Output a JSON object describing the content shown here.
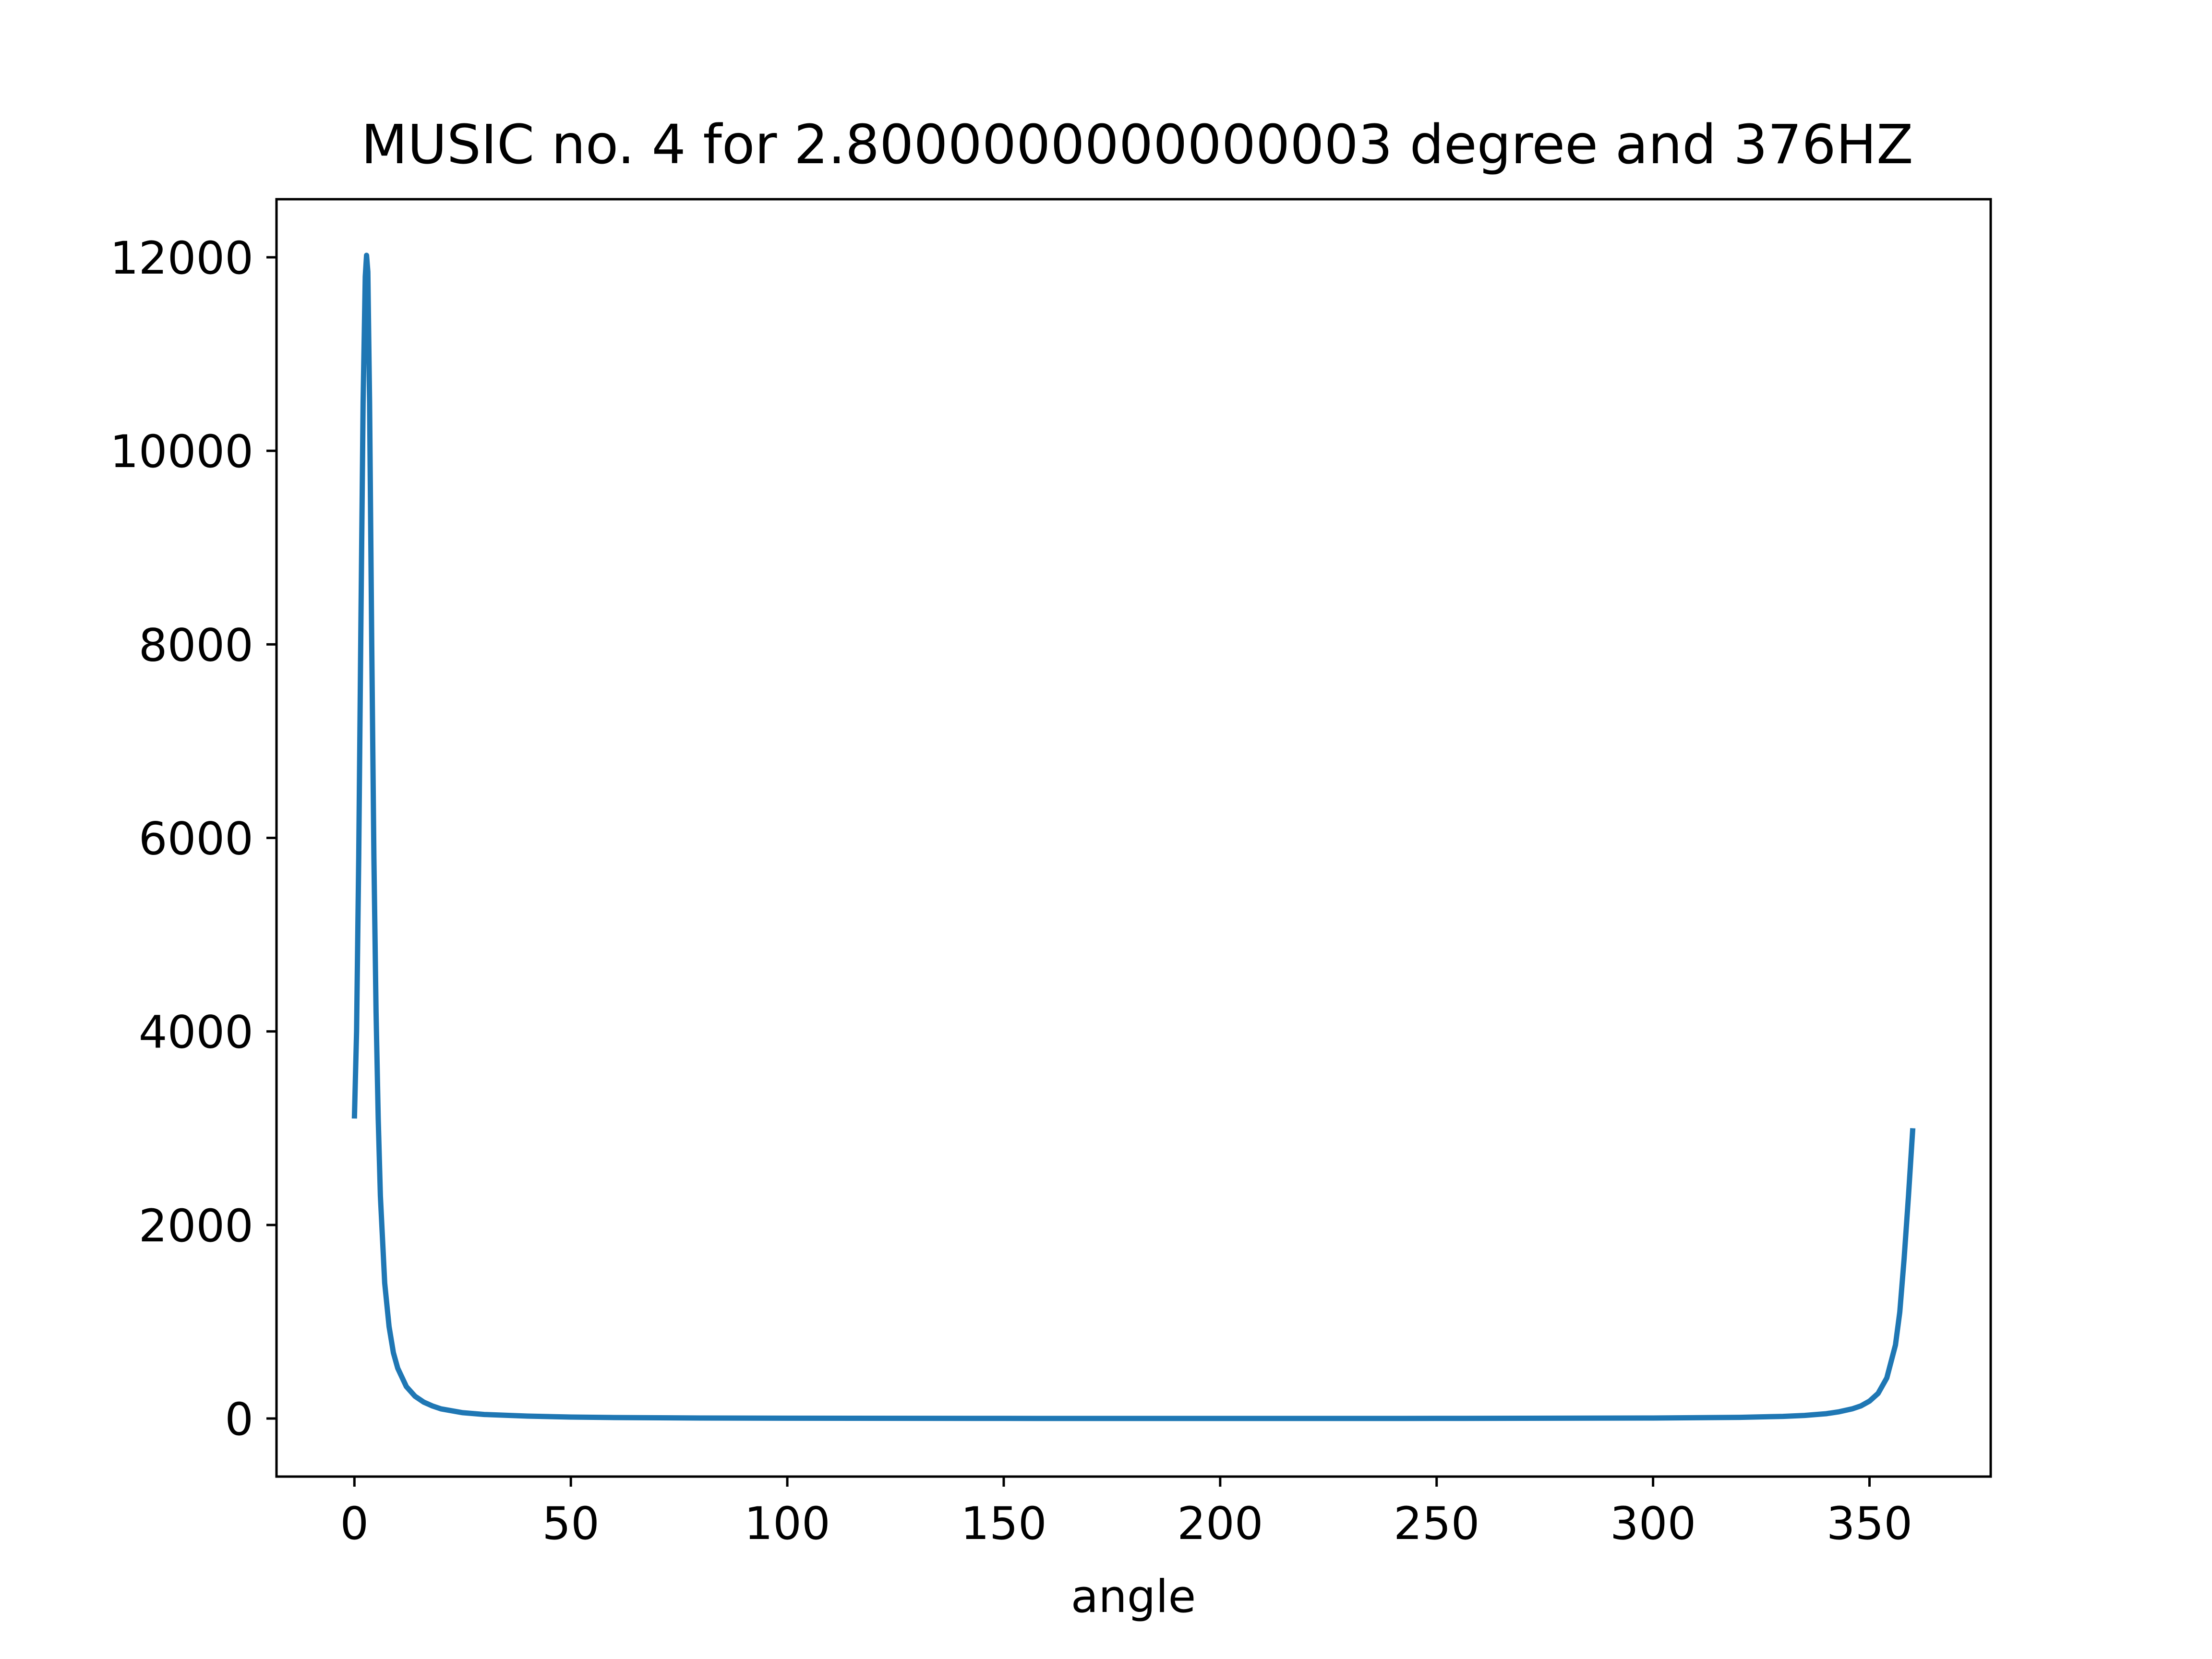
{
  "chart_data": {
    "type": "line",
    "title": "MUSIC no. 4 for 2.8000000000000003 degree and 376HZ",
    "xlabel": "angle",
    "ylabel": "",
    "xlim": [
      -18,
      378
    ],
    "ylim": [
      -600,
      12600
    ],
    "xticks": [
      0,
      50,
      100,
      150,
      200,
      250,
      300,
      350
    ],
    "xtick_labels": [
      "0",
      "50",
      "100",
      "150",
      "200",
      "250",
      "300",
      "350"
    ],
    "yticks": [
      0,
      2000,
      4000,
      6000,
      8000,
      10000,
      12000
    ],
    "ytick_labels": [
      "0",
      "2000",
      "4000",
      "6000",
      "8000",
      "10000",
      "12000"
    ],
    "grid": false,
    "legend": "none",
    "series": [
      {
        "color": "#1f77b4",
        "x": [
          0,
          0.5,
          1,
          1.5,
          2,
          2.5,
          2.8,
          3.1,
          3.5,
          4,
          4.5,
          5,
          5.5,
          6,
          7,
          8,
          9,
          10,
          12,
          14,
          16,
          18,
          20,
          25,
          30,
          40,
          50,
          60,
          80,
          100,
          150,
          200,
          250,
          300,
          320,
          330,
          335,
          340,
          343,
          346,
          348,
          350,
          352,
          354,
          356,
          357,
          358,
          359,
          360
        ],
        "values": [
          3100,
          4000,
          5800,
          8200,
          10500,
          11800,
          12020,
          11850,
          10500,
          8000,
          5800,
          4200,
          3100,
          2300,
          1400,
          950,
          680,
          520,
          330,
          230,
          170,
          130,
          100,
          60,
          42,
          25,
          15,
          10,
          5,
          3,
          1,
          0.5,
          1,
          5,
          12,
          22,
          32,
          50,
          70,
          100,
          130,
          180,
          260,
          420,
          760,
          1100,
          1650,
          2300,
          3000
        ]
      }
    ]
  }
}
